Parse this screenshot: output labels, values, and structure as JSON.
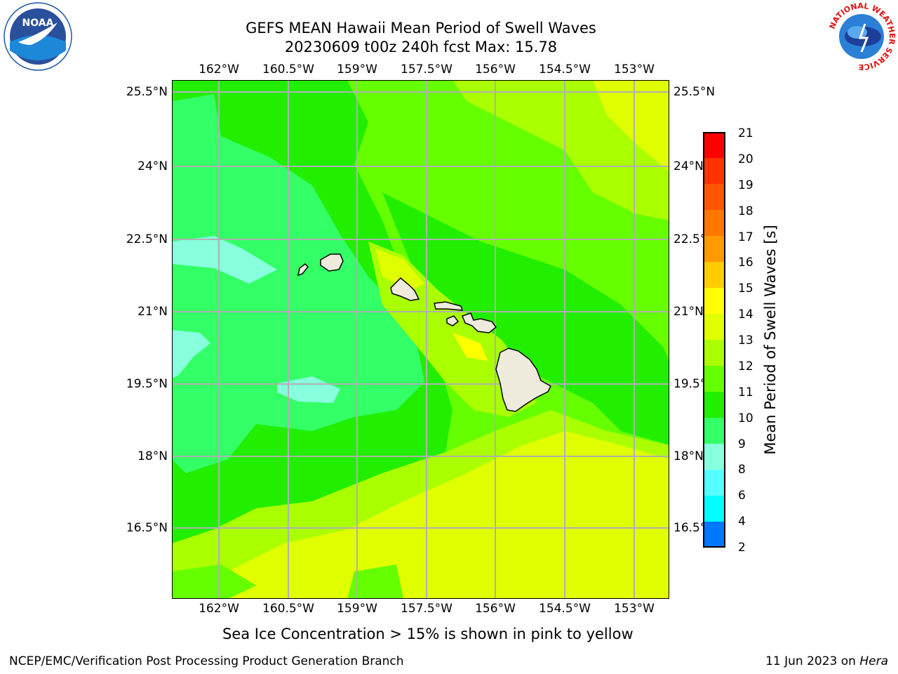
{
  "title_line1": "GEFS MEAN Hawaii Mean Period of Swell Waves",
  "title_line2": "20230609 t00z 240h fcst   Max: 15.78",
  "lon_labels": [
    "162°W",
    "160.5°W",
    "159°W",
    "157.5°W",
    "156°W",
    "154.5°W",
    "153°W"
  ],
  "lat_labels": [
    "25.5°N",
    "24°N",
    "22.5°N",
    "21°N",
    "19.5°N",
    "18°N",
    "16.5°N"
  ],
  "colorbar": {
    "label": "Mean Period of Swell Waves [s]",
    "ticks": [
      "21",
      "20",
      "19",
      "18",
      "17",
      "16",
      "15",
      "14",
      "13",
      "12",
      "11",
      "10",
      "9",
      "8",
      "6",
      "4",
      "2"
    ],
    "colors": [
      "#ff0000",
      "#ff3300",
      "#ff5500",
      "#ff7700",
      "#ff9900",
      "#ffcc00",
      "#ffff00",
      "#e0ff00",
      "#aaff00",
      "#66ff00",
      "#22ee00",
      "#33ff66",
      "#88ffdd",
      "#55ffff",
      "#00ffff",
      "#0077ff",
      "#0000ff"
    ]
  },
  "map_colors": {
    "c10": "#33ff66",
    "c11": "#22ee00",
    "c12": "#66ff00",
    "c13": "#aaff00",
    "c14": "#e0ff00",
    "c15": "#ffff00",
    "c9": "#88ffdd",
    "land": "#eeeadc",
    "grid": "#b0b0b0"
  },
  "logos": {
    "noara": "noaa-logo",
    "nws": "national-weather-service-logo",
    "noaa_text": "NOAA",
    "nws_ring_text": "NATIONAL WEATHER SERVICE"
  },
  "subtitle": "Sea Ice Concentration > 15% is shown in pink to yellow",
  "footer_left": "NCEP/EMC/Verification Post Processing Product Generation Branch",
  "footer_date": "11 Jun 2023 on ",
  "footer_machine": "Hera"
}
